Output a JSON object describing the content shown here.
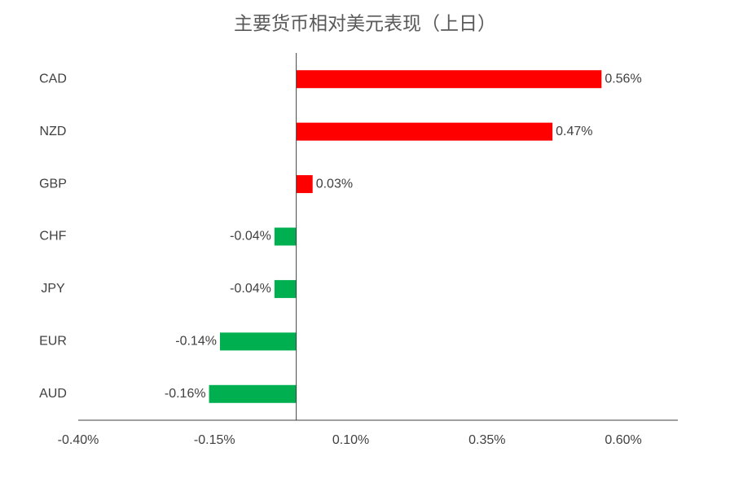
{
  "chart_data": {
    "type": "hbar",
    "title": "主要货币相对美元表现（上日）",
    "categories": [
      "CAD",
      "NZD",
      "GBP",
      "CHF",
      "JPY",
      "EUR",
      "AUD"
    ],
    "values": [
      0.56,
      0.47,
      0.03,
      -0.04,
      -0.04,
      -0.14,
      -0.16
    ],
    "value_labels": [
      "0.56%",
      "0.47%",
      "0.03%",
      "-0.04%",
      "-0.04%",
      "-0.14%",
      "-0.16%"
    ],
    "colors": [
      "#ff0000",
      "#ff0000",
      "#ff0000",
      "#00b050",
      "#00b050",
      "#00b050",
      "#00b050"
    ],
    "xlim": [
      -0.4,
      0.7
    ],
    "xticks": [
      {
        "value": -0.4,
        "label": "-0.40%"
      },
      {
        "value": -0.15,
        "label": "-0.15%"
      },
      {
        "value": 0.1,
        "label": "0.10%"
      },
      {
        "value": 0.35,
        "label": "0.35%"
      },
      {
        "value": 0.6,
        "label": "0.60%"
      }
    ],
    "grid": false
  }
}
